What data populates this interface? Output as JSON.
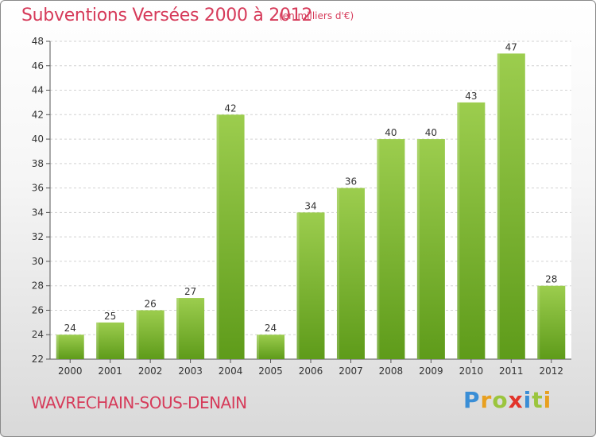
{
  "header": {
    "title": "Subventions Versées 2000 à 2012",
    "unit": "(en milliers d'€)"
  },
  "footer": {
    "commune": "WAVRECHAIN-SOUS-DENAIN",
    "logo_letters": [
      "P",
      "r",
      "o",
      "x",
      "i",
      "t",
      "i"
    ],
    "logo_colors": [
      "#3a8ed6",
      "#e8a020",
      "#9bc53d",
      "#e2342a",
      "#3a8ed6",
      "#9bc53d",
      "#e8a020"
    ]
  },
  "chart_data": {
    "type": "bar",
    "categories": [
      "2000",
      "2001",
      "2002",
      "2003",
      "2004",
      "2005",
      "2006",
      "2007",
      "2008",
      "2009",
      "2010",
      "2011",
      "2012"
    ],
    "values": [
      24,
      25,
      26,
      27,
      42,
      24,
      34,
      36,
      40,
      40,
      43,
      47,
      28
    ],
    "ylim": [
      22,
      48
    ],
    "yticks": [
      22,
      24,
      26,
      28,
      30,
      32,
      34,
      36,
      38,
      40,
      42,
      44,
      46,
      48
    ],
    "grid": true,
    "bar_color_top": "#9ccd4e",
    "bar_color_bottom": "#5e9b1a"
  }
}
